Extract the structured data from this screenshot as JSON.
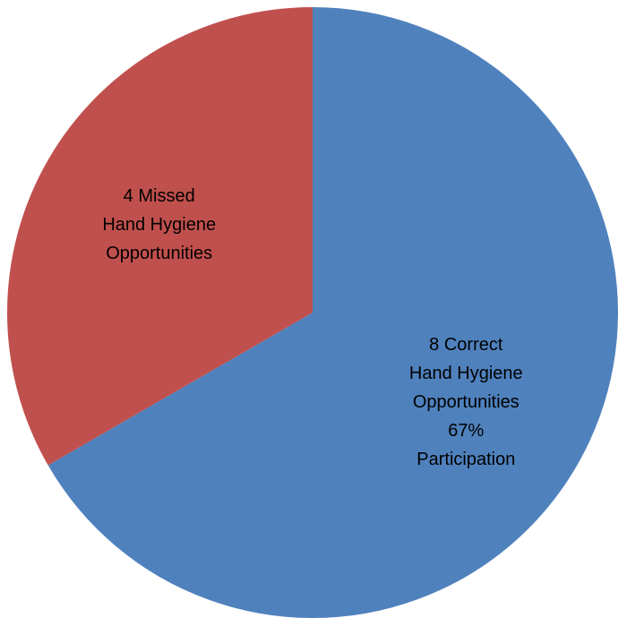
{
  "chart_data": {
    "type": "pie",
    "slices": [
      {
        "value": 8,
        "color": "#4f81bd",
        "label_lines": [
          "8 Correct",
          "Hand Hygiene",
          "Opportunities",
          "67%",
          "Participation"
        ]
      },
      {
        "value": 4,
        "color": "#c0504d",
        "label_lines": [
          "4  Missed",
          "Hand Hygiene",
          "Opportunities"
        ]
      }
    ],
    "start": "12 o'clock",
    "direction": "clockwise",
    "legend": "none"
  }
}
